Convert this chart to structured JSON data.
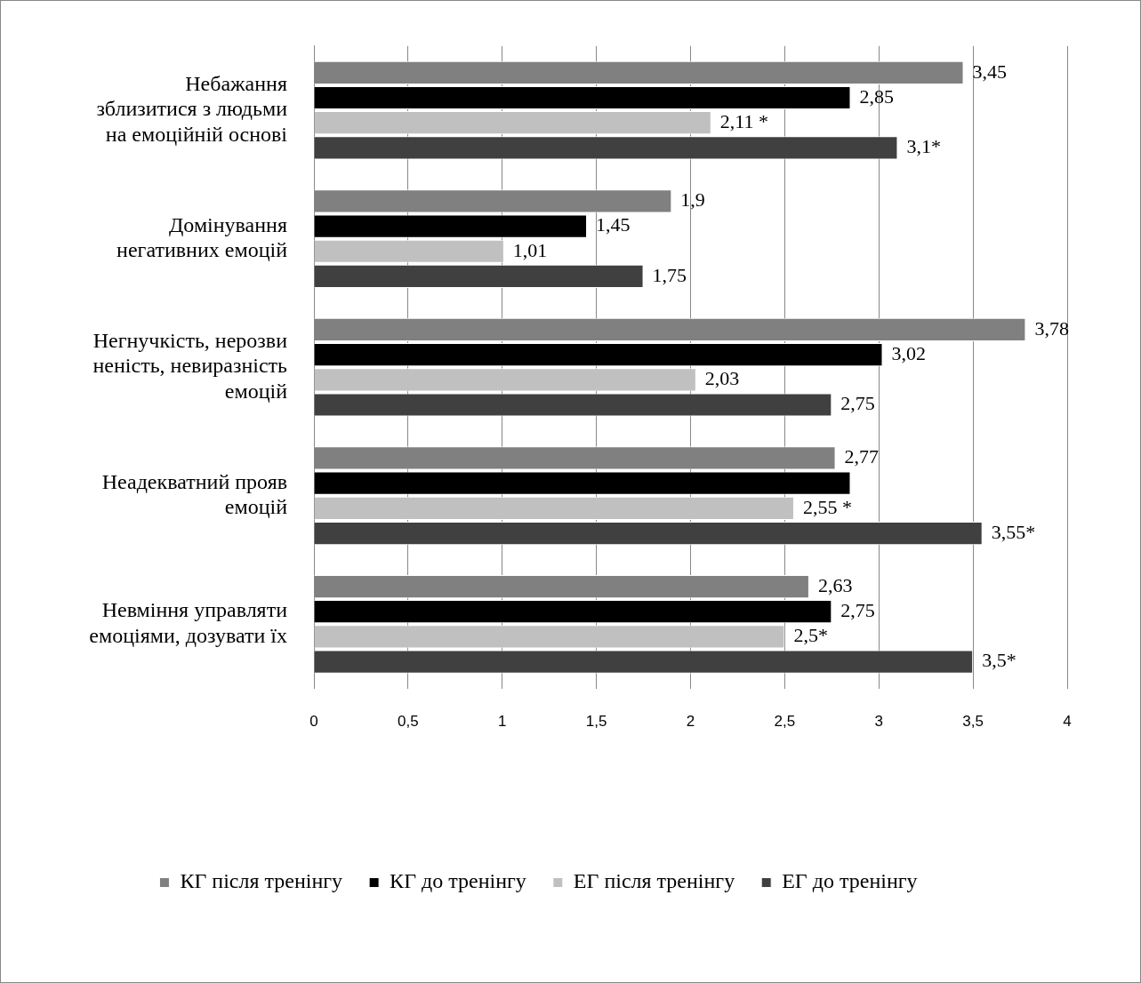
{
  "chart_data": {
    "type": "bar",
    "orientation": "horizontal",
    "categories": [
      "Небажання\nзблизитися з людьми\nна емоційній основі",
      "Домінування\nнегативних емоцій",
      "Негнучкість, нерозви\nненість, невиразність\nемоцій",
      "Неадекватний прояв\nемоцій",
      "Невміння управляти\nемоціями, дозувати їх"
    ],
    "series": [
      {
        "name": "КГ після тренінгу",
        "color": "#808080",
        "values": [
          3.45,
          1.9,
          3.78,
          2.77,
          2.63
        ],
        "value_labels": [
          "3,45",
          "1,9",
          "3,78",
          "2,77",
          "2,63"
        ]
      },
      {
        "name": "КГ до тренінгу",
        "color": "#000000",
        "values": [
          2.85,
          1.45,
          3.02,
          2.85,
          2.75
        ],
        "value_labels": [
          "2,85",
          "1,45",
          "3,02",
          null,
          "2,75"
        ]
      },
      {
        "name": "ЕГ після тренінгу",
        "color": "#c0c0c0",
        "values": [
          2.11,
          1.01,
          2.03,
          2.55,
          2.5
        ],
        "value_labels": [
          "2,11 *",
          "1,01",
          "2,03",
          "2,55 *",
          "2,5*"
        ]
      },
      {
        "name": "ЕГ до тренінгу",
        "color": "#404040",
        "values": [
          3.1,
          1.75,
          2.75,
          3.55,
          3.5
        ],
        "value_labels": [
          "3,1*",
          "1,75",
          "2,75",
          "3,55*",
          "3,5*"
        ]
      }
    ],
    "xlim": [
      0,
      4
    ],
    "xticks": [
      0,
      {
        "value": 0.5,
        "label": "0,5"
      },
      1,
      {
        "value": 1.5,
        "label": "1,5"
      },
      2,
      {
        "value": 2.5,
        "label": "2,5"
      },
      3,
      {
        "value": 3.5,
        "label": "3,5"
      },
      4
    ],
    "grid": "x",
    "legend": "bottom"
  }
}
